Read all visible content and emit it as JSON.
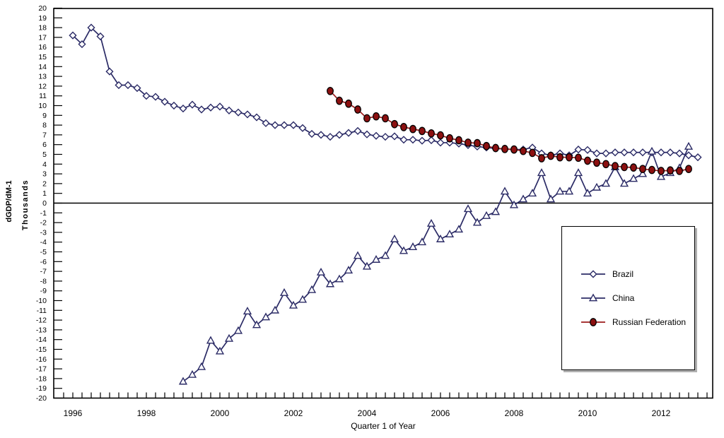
{
  "axes": {
    "y": {
      "title_outer": "dGDP/dM-1",
      "title_inner": "Thousands",
      "min": -20,
      "max": 20,
      "step": 1
    },
    "x": {
      "title": "Quarter 1 of Year",
      "first_year_label": 1996,
      "last_year_label": 2012,
      "year_label_step": 2,
      "ticks_per_year": 4
    }
  },
  "legend": {
    "items": [
      {
        "label": "Brazil",
        "marker": "diamond",
        "line_color": "#2B2B66",
        "marker_color": "#2B2B66",
        "marker_fill": "#FFFFFF"
      },
      {
        "label": "China",
        "marker": "triangle",
        "line_color": "#2B2B66",
        "marker_color": "#2B2B66",
        "marker_fill": "#FFFFFF"
      },
      {
        "label": "Russian Federation",
        "marker": "circle",
        "line_color": "#9B1B1B",
        "marker_color": "#000000",
        "marker_fill": "#8C1010"
      }
    ]
  },
  "chart_data": {
    "type": "line",
    "title": "",
    "xlabel": "Quarter 1 of Year",
    "ylabel": "dGDP/dM-1 (Thousands)",
    "ylim": [
      -20,
      20
    ],
    "x_frequency": "quarterly",
    "x_year_labels": [
      1996,
      1998,
      2000,
      2002,
      2004,
      2006,
      2008,
      2010,
      2012
    ],
    "series": [
      {
        "name": "Brazil",
        "marker": "diamond",
        "line_color": "#2B2B66",
        "marker_color": "#2B2B66",
        "marker_fill": "#FFFFFF",
        "start_label": "1996 Q1",
        "quarter_offset": 0,
        "values": [
          17.2,
          16.3,
          18.0,
          17.1,
          13.5,
          12.1,
          12.1,
          11.8,
          11.0,
          10.9,
          10.4,
          10.0,
          9.7,
          10.1,
          9.6,
          9.8,
          9.9,
          9.5,
          9.3,
          9.1,
          8.8,
          8.2,
          8.0,
          8.0,
          8.0,
          7.7,
          7.1,
          7.0,
          6.8,
          7.0,
          7.2,
          7.4,
          7.05,
          6.9,
          6.8,
          6.85,
          6.5,
          6.5,
          6.4,
          6.45,
          6.2,
          6.2,
          6.1,
          5.95,
          5.8,
          5.7,
          5.6,
          5.55,
          5.5,
          5.5,
          5.7,
          5.1,
          4.9,
          5.1,
          4.9,
          5.5,
          5.45,
          5.1,
          5.1,
          5.2,
          5.2,
          5.2,
          5.2,
          5.2,
          5.2,
          5.2,
          5.1,
          4.9,
          4.7
        ]
      },
      {
        "name": "China",
        "marker": "triangle",
        "line_color": "#2B2B66",
        "marker_color": "#2B2B66",
        "marker_fill": "#FFFFFF",
        "start_label": "1999 Q1",
        "quarter_offset": 12,
        "values": [
          -18.3,
          -17.6,
          -16.8,
          -14.1,
          -15.2,
          -13.9,
          -13.1,
          -11.1,
          -12.5,
          -11.7,
          -11.0,
          -9.2,
          -10.5,
          -9.9,
          -8.9,
          -7.1,
          -8.3,
          -7.8,
          -6.9,
          -5.4,
          -6.5,
          -5.8,
          -5.4,
          -3.7,
          -4.9,
          -4.5,
          -4.0,
          -2.1,
          -3.7,
          -3.2,
          -2.7,
          -0.6,
          -2.0,
          -1.3,
          -0.9,
          1.2,
          -0.2,
          0.4,
          1.0,
          3.1,
          0.4,
          1.2,
          1.2,
          3.1,
          1.0,
          1.6,
          2.0,
          3.7,
          2.0,
          2.5,
          3.0,
          5.3,
          2.7,
          3.1,
          3.6,
          5.8
        ]
      },
      {
        "name": "Russian Federation",
        "marker": "circle",
        "line_color": "#9B1B1B",
        "marker_color": "#000000",
        "marker_fill": "#8C1010",
        "start_label": "2003 Q1",
        "quarter_offset": 28,
        "values": [
          11.5,
          10.5,
          10.2,
          9.6,
          8.7,
          8.9,
          8.7,
          8.1,
          7.8,
          7.6,
          7.4,
          7.15,
          6.95,
          6.65,
          6.45,
          6.2,
          6.15,
          5.85,
          5.65,
          5.55,
          5.5,
          5.35,
          5.15,
          4.6,
          4.85,
          4.7,
          4.7,
          4.65,
          4.35,
          4.15,
          4.0,
          3.8,
          3.7,
          3.65,
          3.5,
          3.4,
          3.3,
          3.35,
          3.3,
          3.5
        ]
      }
    ]
  }
}
